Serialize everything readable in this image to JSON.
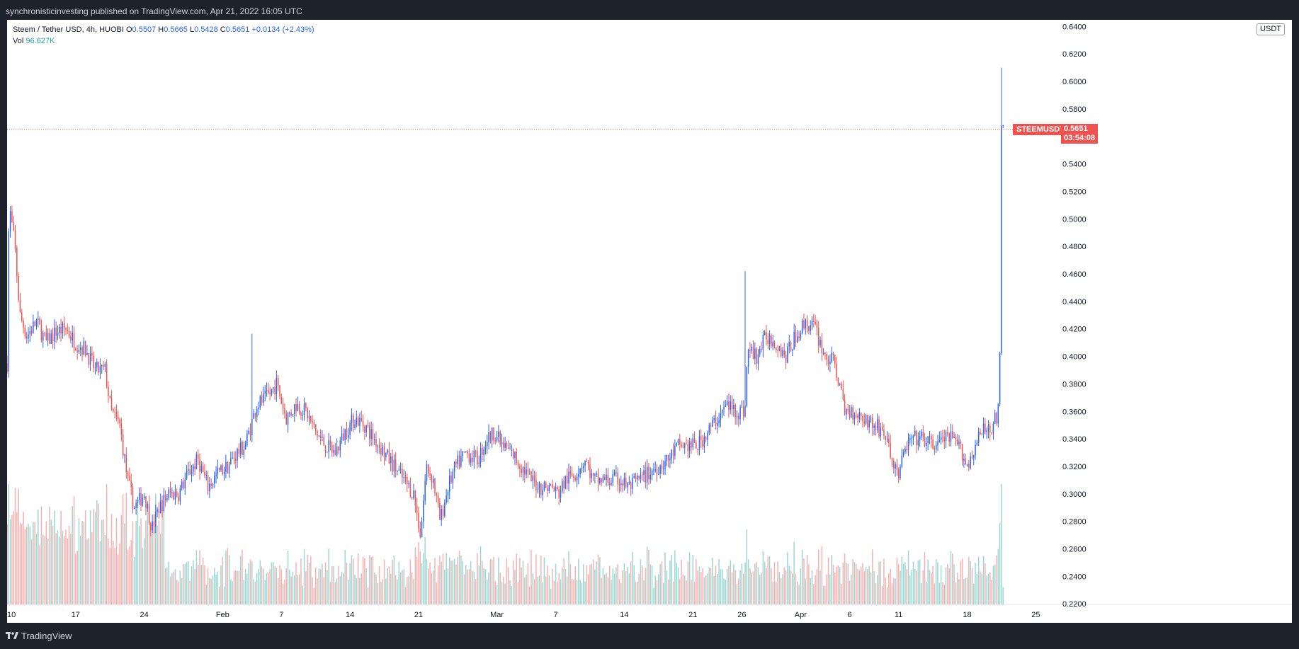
{
  "header": {
    "publisher_line": "synchronisticinvesting published on TradingView.com, Apr 21, 2022 16:05 UTC"
  },
  "footer": {
    "brand": "TradingView"
  },
  "legend": {
    "symbol_line": "Steem / Tether USD, 4h, HUOBI",
    "open_label": "O",
    "open_value": "0.5507",
    "high_label": "H",
    "high_value": "0.5665",
    "low_label": "L",
    "low_value": "0.5428",
    "close_label": "C",
    "close_value": "0.5651",
    "change": "+0.0134 (+2.43%)",
    "vol_label": "Vol",
    "vol_value": "96.627K"
  },
  "price_axis": {
    "unit": "USDT"
  },
  "last_price": {
    "ticker": "STEEMUSDT",
    "price": "0.5651",
    "countdown": "03:54:08"
  },
  "colors": {
    "up": "#2962ff",
    "down": "#ef5350",
    "vol_up": "#26a69a",
    "vol_down": "#ef5350",
    "grid": "#f0f3fa",
    "axis_text": "#131722"
  },
  "chart_data": {
    "type": "candlestick",
    "timeframe": "4h",
    "y_ticks": [
      "0.2200",
      "0.2400",
      "0.2600",
      "0.2800",
      "0.3000",
      "0.3200",
      "0.3400",
      "0.3600",
      "0.3800",
      "0.4000",
      "0.4200",
      "0.4400",
      "0.4600",
      "0.4800",
      "0.5000",
      "0.5200",
      "0.5400",
      "0.5600",
      "0.5800",
      "0.6000",
      "0.6200",
      "0.6400"
    ],
    "ylim": [
      0.2196,
      0.6448
    ],
    "x_ticks": [
      {
        "label": "10",
        "day": 0
      },
      {
        "label": "17",
        "day": 7
      },
      {
        "label": "24",
        "day": 14
      },
      {
        "label": "Feb",
        "day": 22
      },
      {
        "label": "7",
        "day": 28
      },
      {
        "label": "14",
        "day": 35
      },
      {
        "label": "21",
        "day": 42
      },
      {
        "label": "Mar",
        "day": 50
      },
      {
        "label": "7",
        "day": 56
      },
      {
        "label": "14",
        "day": 63
      },
      {
        "label": "21",
        "day": 70
      },
      {
        "label": "26",
        "day": 75
      },
      {
        "label": "Apr",
        "day": 81
      },
      {
        "label": "6",
        "day": 86
      },
      {
        "label": "11",
        "day": 91
      },
      {
        "label": "18",
        "day": 98
      },
      {
        "label": "25",
        "day": 105
      }
    ],
    "xlim_days": [
      0,
      107
    ],
    "close_path": [
      [
        0,
        0.395
      ],
      [
        0.2,
        0.51
      ],
      [
        0.8,
        0.48
      ],
      [
        1.3,
        0.43
      ],
      [
        2,
        0.415
      ],
      [
        3,
        0.425
      ],
      [
        4,
        0.41
      ],
      [
        5,
        0.418
      ],
      [
        6,
        0.42
      ],
      [
        7,
        0.41
      ],
      [
        8,
        0.405
      ],
      [
        9,
        0.39
      ],
      [
        10,
        0.39
      ],
      [
        10.6,
        0.36
      ],
      [
        11.5,
        0.35
      ],
      [
        12.3,
        0.31
      ],
      [
        13,
        0.29
      ],
      [
        14,
        0.3
      ],
      [
        14.8,
        0.275
      ],
      [
        15.5,
        0.29
      ],
      [
        16.5,
        0.3
      ],
      [
        17.5,
        0.3
      ],
      [
        18.5,
        0.315
      ],
      [
        19.5,
        0.325
      ],
      [
        20.5,
        0.305
      ],
      [
        21.5,
        0.315
      ],
      [
        22.5,
        0.32
      ],
      [
        23.5,
        0.33
      ],
      [
        24.3,
        0.335
      ],
      [
        25.5,
        0.365
      ],
      [
        26.5,
        0.37
      ],
      [
        27.5,
        0.38
      ],
      [
        28.5,
        0.355
      ],
      [
        29.5,
        0.365
      ],
      [
        30.5,
        0.36
      ],
      [
        31.5,
        0.345
      ],
      [
        32.5,
        0.335
      ],
      [
        33.5,
        0.33
      ],
      [
        34.5,
        0.345
      ],
      [
        35.5,
        0.355
      ],
      [
        36.5,
        0.35
      ],
      [
        37.5,
        0.34
      ],
      [
        38.5,
        0.33
      ],
      [
        39.5,
        0.32
      ],
      [
        40.5,
        0.31
      ],
      [
        41.5,
        0.3
      ],
      [
        42.2,
        0.27
      ],
      [
        42.8,
        0.32
      ],
      [
        43.5,
        0.31
      ],
      [
        44.2,
        0.28
      ],
      [
        45,
        0.305
      ],
      [
        45.8,
        0.32
      ],
      [
        46.8,
        0.33
      ],
      [
        48,
        0.325
      ],
      [
        49,
        0.34
      ],
      [
        49.8,
        0.345
      ],
      [
        50.5,
        0.335
      ],
      [
        51.5,
        0.33
      ],
      [
        52.5,
        0.32
      ],
      [
        53.5,
        0.31
      ],
      [
        54.5,
        0.305
      ],
      [
        55.5,
        0.305
      ],
      [
        56.3,
        0.3
      ],
      [
        57,
        0.31
      ],
      [
        58,
        0.315
      ],
      [
        59,
        0.325
      ],
      [
        59.8,
        0.31
      ],
      [
        61,
        0.31
      ],
      [
        62.5,
        0.31
      ],
      [
        63.5,
        0.305
      ],
      [
        64.5,
        0.31
      ],
      [
        65.5,
        0.315
      ],
      [
        66.5,
        0.32
      ],
      [
        67.5,
        0.325
      ],
      [
        68.5,
        0.335
      ],
      [
        69.5,
        0.335
      ],
      [
        70.5,
        0.335
      ],
      [
        71.5,
        0.345
      ],
      [
        72.5,
        0.355
      ],
      [
        73.5,
        0.365
      ],
      [
        74.5,
        0.36
      ],
      [
        75.3,
        0.36
      ],
      [
        75.6,
        0.405
      ],
      [
        76.5,
        0.4
      ],
      [
        77.5,
        0.415
      ],
      [
        78.5,
        0.41
      ],
      [
        79.5,
        0.4
      ],
      [
        80.5,
        0.415
      ],
      [
        81.5,
        0.425
      ],
      [
        82.5,
        0.42
      ],
      [
        83.5,
        0.4
      ],
      [
        84.5,
        0.395
      ],
      [
        85.5,
        0.36
      ],
      [
        86.5,
        0.36
      ],
      [
        87.5,
        0.355
      ],
      [
        88.5,
        0.35
      ],
      [
        89.5,
        0.345
      ],
      [
        90.5,
        0.32
      ],
      [
        91,
        0.315
      ],
      [
        91.8,
        0.335
      ],
      [
        92.5,
        0.34
      ],
      [
        93.5,
        0.34
      ],
      [
        94.5,
        0.335
      ],
      [
        95.5,
        0.34
      ],
      [
        96.5,
        0.34
      ],
      [
        97.5,
        0.33
      ],
      [
        98,
        0.32
      ],
      [
        98.8,
        0.335
      ],
      [
        99.5,
        0.345
      ],
      [
        100.5,
        0.35
      ],
      [
        101,
        0.355
      ],
      [
        101.3,
        0.365
      ],
      [
        101.5,
        0.565
      ],
      [
        101.8,
        0.5651
      ]
    ],
    "notable_wicks": [
      {
        "day": 25.0,
        "high": 0.4165
      },
      {
        "day": 75.3,
        "high": 0.462
      },
      {
        "day": 101.5,
        "high": 0.61
      },
      {
        "day": 101.4,
        "low": 0.48
      }
    ],
    "volume_max_label_free": true
  }
}
